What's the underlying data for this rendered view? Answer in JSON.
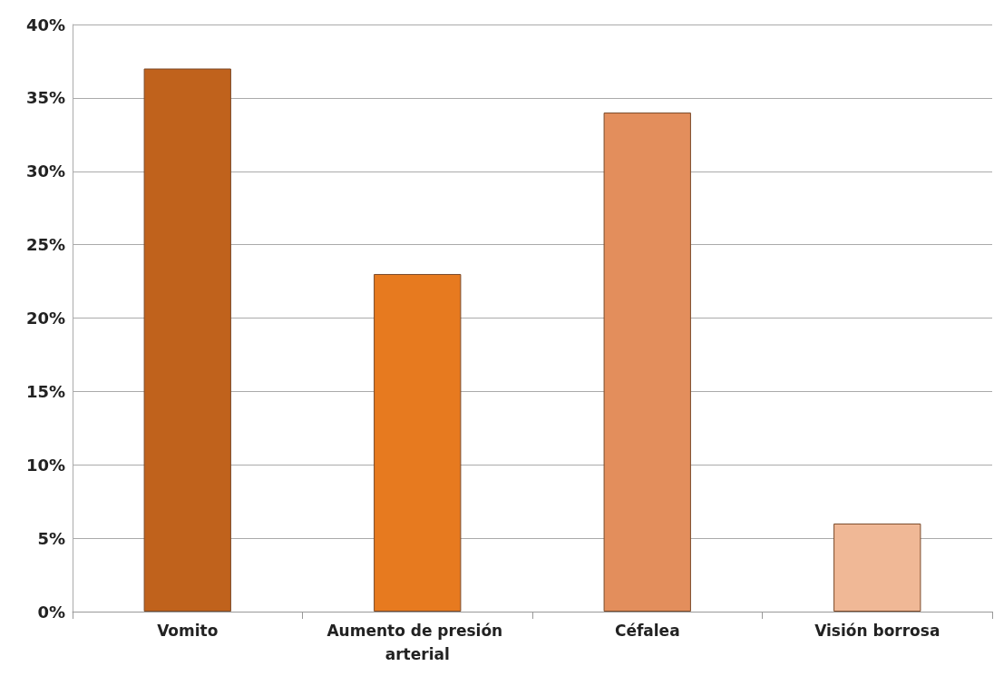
{
  "chart_data": {
    "type": "bar",
    "categories": [
      "Vomito",
      "Aumento de presión arterial",
      "Céfalea",
      "Visión borrosa"
    ],
    "values": [
      37,
      23,
      34,
      6
    ],
    "colors": [
      "#c0621c",
      "#e77a1f",
      "#e38e5c",
      "#f0b896"
    ],
    "ylim": [
      0,
      40
    ],
    "yticks": [
      {
        "value": 0,
        "label": "0%"
      },
      {
        "value": 5,
        "label": "5%"
      },
      {
        "value": 10,
        "label": "10%"
      },
      {
        "value": 15,
        "label": "15%"
      },
      {
        "value": 20,
        "label": "20%"
      },
      {
        "value": 25,
        "label": "25%"
      },
      {
        "value": 30,
        "label": "30%"
      },
      {
        "value": 35,
        "label": "35%"
      },
      {
        "value": 40,
        "label": "40%"
      }
    ],
    "grid": "y"
  }
}
